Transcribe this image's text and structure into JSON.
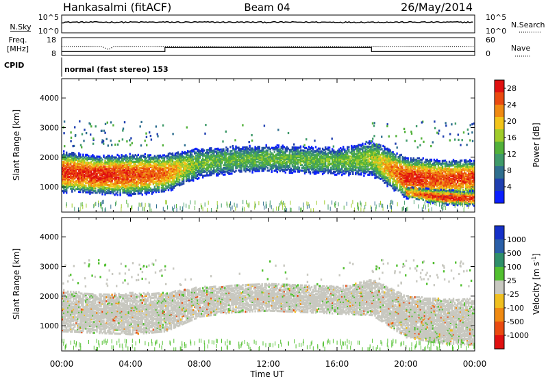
{
  "header": {
    "station": "Hankasalmi (fitACF)",
    "beam": "Beam 04",
    "date": "26/May/2014"
  },
  "chart_data": [
    {
      "type": "line",
      "panel": "noise",
      "left_label": "N.Sky",
      "right_label": "N.Search",
      "left_ticks": [
        "10^5",
        "10^0"
      ],
      "right_ticks": [
        "10^5",
        "10^0"
      ],
      "scale": "log",
      "ylim": [
        1,
        100000
      ],
      "series": [
        {
          "name": "N.Sky",
          "x": [
            0,
            1,
            2,
            3,
            4,
            5,
            6,
            7,
            8,
            9,
            10,
            11,
            12,
            13,
            14,
            15,
            16,
            17,
            18,
            19,
            20,
            21,
            22,
            23,
            24
          ],
          "y": [
            1000,
            1000,
            1000,
            1000,
            1000,
            1000,
            1000,
            1000,
            1000,
            1000,
            1000,
            1000,
            1000,
            1000,
            1000,
            1000,
            1000,
            1000,
            1000,
            1000,
            1000,
            1000,
            1000,
            1000,
            1000
          ]
        }
      ]
    },
    {
      "type": "line",
      "panel": "frequency",
      "left_label_lines": [
        "Freq.",
        "[MHz]"
      ],
      "right_label": "Nave",
      "left_ticks": [
        "18",
        "8"
      ],
      "right_ticks": [
        "60",
        "0"
      ],
      "ylim": [
        8,
        18
      ],
      "series": [
        {
          "name": "Freq.",
          "x": [
            0,
            6,
            6,
            18,
            18,
            24
          ],
          "y": [
            10.2,
            10.2,
            12.5,
            12.5,
            10.2,
            10.2
          ]
        },
        {
          "name": "Nave",
          "x": [
            0,
            2.3,
            2.7,
            3.0,
            24
          ],
          "y": [
            30,
            30,
            20,
            30,
            30
          ]
        }
      ]
    },
    {
      "type": "text",
      "panel": "cpid",
      "label": "CPID",
      "text": "normal (fast stereo) 153"
    },
    {
      "type": "heatmap",
      "panel": "power",
      "ylabel": "Slant Range [km]",
      "yticks": [
        "1000",
        "2000",
        "3000",
        "4000"
      ],
      "ylim": [
        150,
        4650
      ],
      "xlim": [
        0,
        24
      ],
      "colorbar": {
        "label": "Power [dB]",
        "ticks": [
          "4",
          "8",
          "12",
          "16",
          "20",
          "24",
          "28"
        ],
        "colors": [
          "#0b1fff",
          "#1f3fb0",
          "#2f6f8f",
          "#3f9a6a",
          "#52b13a",
          "#a0cc2a",
          "#f2c41a",
          "#f08a12",
          "#ea4a10",
          "#e01010"
        ]
      },
      "echo_layers": [
        {
          "description": "F-region band",
          "x": [
            0,
            2,
            4,
            6,
            8,
            10,
            12,
            14,
            16,
            18,
            20,
            22,
            24
          ],
          "center_km": [
            1500,
            1400,
            1400,
            1450,
            1800,
            1900,
            1950,
            1900,
            1850,
            1950,
            1300,
            1250,
            1300
          ],
          "width_km": [
            700,
            650,
            700,
            650,
            500,
            450,
            450,
            450,
            450,
            600,
            700,
            650,
            600
          ],
          "peak_dB": [
            26,
            28,
            26,
            24,
            14,
            14,
            14,
            14,
            14,
            16,
            28,
            26,
            26
          ]
        },
        {
          "description": "lower layer",
          "x": [
            20,
            22,
            24
          ],
          "center_km": [
            800,
            650,
            600
          ],
          "width_km": [
            200,
            250,
            250
          ],
          "peak_dB": [
            22,
            28,
            28
          ]
        }
      ]
    },
    {
      "type": "heatmap",
      "panel": "velocity",
      "ylabel": "Slant Range [km]",
      "yticks": [
        "1000",
        "2000",
        "3000",
        "4000"
      ],
      "ylim": [
        150,
        4650
      ],
      "xlim": [
        0,
        24
      ],
      "xticks": [
        "00:00",
        "04:00",
        "08:00",
        "12:00",
        "16:00",
        "20:00",
        "00:00"
      ],
      "xlabel": "Time UT",
      "colorbar": {
        "label": "Velocity [m s^-1]",
        "ticks": [
          "1000",
          "500",
          "100",
          "25",
          "-25",
          "-100",
          "-500",
          "-1000"
        ],
        "colors": [
          "#1530c8",
          "#2a5fa8",
          "#2f8f6a",
          "#52c030",
          "#c8c8c0",
          "#f0c020",
          "#f08a12",
          "#ea4a10",
          "#e01010"
        ]
      }
    }
  ]
}
